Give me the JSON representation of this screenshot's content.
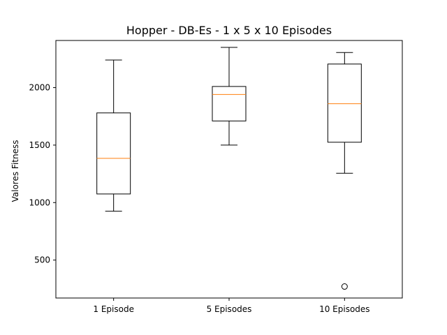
{
  "chart_data": {
    "type": "boxplot",
    "title": "Hopper - DB-Es - 1 x 5 x 10 Episodes",
    "xlabel": "",
    "ylabel": "Valores Fitness",
    "ylim": [
      170,
      2410
    ],
    "yticks": [
      500,
      1000,
      1500,
      2000
    ],
    "grid": false,
    "categories": [
      "1 Episode",
      "5 Episodes",
      "10 Episodes"
    ],
    "boxes": [
      {
        "category": "1 Episode",
        "whisker_low": 925,
        "q1": 1075,
        "median": 1385,
        "q3": 1780,
        "whisker_high": 2240,
        "outliers": []
      },
      {
        "category": "5 Episodes",
        "whisker_low": 1500,
        "q1": 1710,
        "median": 1940,
        "q3": 2010,
        "whisker_high": 2350,
        "outliers": []
      },
      {
        "category": "10 Episodes",
        "whisker_low": 1255,
        "q1": 1525,
        "median": 1860,
        "q3": 2205,
        "whisker_high": 2305,
        "outliers": [
          270
        ]
      }
    ],
    "colors": {
      "box": "#000000",
      "median": "#ff7f0e",
      "whisker": "#000000",
      "outlier": "#000000"
    }
  }
}
